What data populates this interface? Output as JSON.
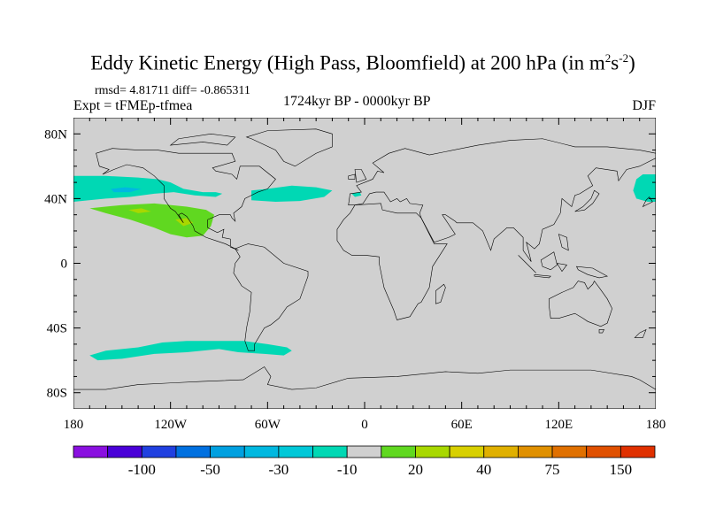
{
  "title": {
    "main": "Eddy Kinetic Energy (High Pass, Bloomfield) at 200 hPa (in m",
    "sup1": "2",
    "mid": "s",
    "sup2": "-2",
    "end": ")"
  },
  "stats": "rmsd= 4.81711 diff= -0.865311",
  "experiment": "Expt = tFMEp-tfmea",
  "period": "1724kyr BP - 0000kyr BP",
  "season": "DJF",
  "map": {
    "lon_range": [
      -180,
      180
    ],
    "lat_range": [
      -90,
      90
    ],
    "lon_ticks": [
      {
        "v": -180,
        "label": "180"
      },
      {
        "v": -120,
        "label": "120W"
      },
      {
        "v": -60,
        "label": "60W"
      },
      {
        "v": 0,
        "label": "0"
      },
      {
        "v": 60,
        "label": "60E"
      },
      {
        "v": 120,
        "label": "120E"
      },
      {
        "v": 180,
        "label": "180"
      }
    ],
    "lat_ticks": [
      {
        "v": 80,
        "label": "80N"
      },
      {
        "v": 40,
        "label": "40N"
      },
      {
        "v": 0,
        "label": "0"
      },
      {
        "v": -40,
        "label": "40S"
      },
      {
        "v": -80,
        "label": "80S"
      }
    ],
    "background_color": "#d0d0d0"
  },
  "colorbar": {
    "colors": [
      "#8a10e0",
      "#4a00d8",
      "#2040e0",
      "#0070e0",
      "#00a0e0",
      "#00b8e0",
      "#00c8d8",
      "#00d8b4",
      "#d0d0d0",
      "#60d820",
      "#a8d800",
      "#d8d000",
      "#e0b000",
      "#e09000",
      "#e07000",
      "#e05000",
      "#e03000"
    ],
    "levels": [
      -150,
      -100,
      -75,
      -50,
      -40,
      -30,
      -20,
      -10,
      10,
      20,
      30,
      40,
      50,
      75,
      100,
      150
    ],
    "labels": [
      {
        "after_box": 2,
        "label": "-100"
      },
      {
        "after_box": 4,
        "label": "-50"
      },
      {
        "after_box": 6,
        "label": "-30"
      },
      {
        "after_box": 8,
        "label": "-10"
      },
      {
        "after_box": 10,
        "label": "20"
      },
      {
        "after_box": 12,
        "label": "40"
      },
      {
        "after_box": 14,
        "label": "75"
      },
      {
        "after_box": 16,
        "label": "150"
      }
    ]
  }
}
